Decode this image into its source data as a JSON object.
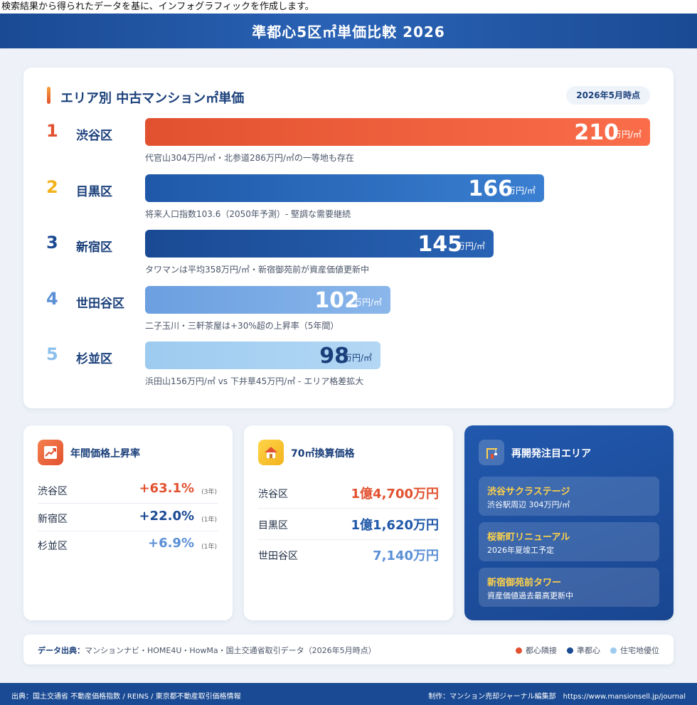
{
  "caption": "検索結果から得られたデータを基に、インフォグラフィックを作成します。",
  "header": {
    "title": "準都心5区㎡単価比較 2026"
  },
  "ranking": {
    "title": "エリア別 中古マンション㎡単価",
    "date": "2026年5月時点",
    "unit": "万円/㎡",
    "scale_max": 210,
    "items": [
      {
        "rank": "1",
        "name": "渋谷区",
        "value": 210,
        "value_label": "210",
        "note": "代官山304万円/㎡・北参道286万円/㎡の一等地も存在",
        "rank_color": "#e2512f",
        "bar_from": "#e2512f",
        "bar_to": "#fa6d4a",
        "text_color": "#ffffff"
      },
      {
        "rank": "2",
        "name": "目黒区",
        "value": 166,
        "value_label": "166",
        "note": "将来人口指数103.6（2050年予測）- 堅調な需要継続",
        "rank_color": "#f2b21b",
        "bar_from": "#1f58a8",
        "bar_to": "#3a7fd1",
        "text_color": "#ffffff"
      },
      {
        "rank": "3",
        "name": "新宿区",
        "value": 145,
        "value_label": "145",
        "note": "タワマンは平均358万円/㎡・新宿御苑前が資産価値更新中",
        "rank_color": "#1a4a93",
        "bar_from": "#1a4a93",
        "bar_to": "#2862b4",
        "text_color": "#ffffff"
      },
      {
        "rank": "4",
        "name": "世田谷区",
        "value": 102,
        "value_label": "102",
        "note": "二子玉川・三軒茶屋は+30%超の上昇率（5年間）",
        "rank_color": "#5b8fd6",
        "bar_from": "#6b9fe0",
        "bar_to": "#8ab6ea",
        "text_color": "#ffffff"
      },
      {
        "rank": "5",
        "name": "杉並区",
        "value": 98,
        "value_label": "98",
        "note": "浜田山156万円/㎡ vs 下井草45万円/㎡ - エリア格差拡大",
        "rank_color": "#8cc0ec",
        "bar_from": "#9dcbf0",
        "bar_to": "#b3d7f4",
        "text_color": "#1a3f7a"
      }
    ]
  },
  "growth": {
    "icon": "chart-up-icon",
    "title": "年間価格上昇率",
    "rows": [
      {
        "name": "渋谷区",
        "value": "+63.1%",
        "sub": "(3年)",
        "color": "#e2512f"
      },
      {
        "name": "新宿区",
        "value": "+22.0%",
        "sub": "(1年)",
        "color": "#1a4a93"
      },
      {
        "name": "杉並区",
        "value": "+6.9%",
        "sub": "(1年)",
        "color": "#5b8fd6"
      }
    ]
  },
  "price70": {
    "icon": "house-icon",
    "title": "70㎡換算価格",
    "rows": [
      {
        "name": "渋谷区",
        "value": "1億4,700万円",
        "color": "#e2512f"
      },
      {
        "name": "目黒区",
        "value": "1億1,620万円",
        "color": "#1f58a8"
      },
      {
        "name": "世田谷区",
        "value": "7,140万円",
        "color": "#5b8fd6"
      }
    ]
  },
  "redevelop": {
    "icon": "crane-icon",
    "title": "再開発注目エリア",
    "items": [
      {
        "name": "渋谷サクラステージ",
        "desc": "渋谷駅周辺 304万円/㎡"
      },
      {
        "name": "桜新町リニューアル",
        "desc": "2026年夏竣工予定"
      },
      {
        "name": "新宿御苑前タワー",
        "desc": "資産価値過去最高更新中"
      }
    ]
  },
  "source": {
    "label": "データ出典：",
    "text": "マンションナビ・HOME4U・HowMa・国土交通省取引データ（2026年5月時点）",
    "legend": [
      {
        "label": "都心隣接",
        "color": "#e2512f"
      },
      {
        "label": "準都心",
        "color": "#1a4a93"
      },
      {
        "label": "住宅地優位",
        "color": "#9dcbf0"
      }
    ]
  },
  "footer": {
    "left": "出典：国土交通省 不動産価格指数 / REINS / 東京都不動産取引価格情報",
    "right": "制作：マンション売却ジャーナル編集部　https://www.mansionsell.jp/journal"
  }
}
